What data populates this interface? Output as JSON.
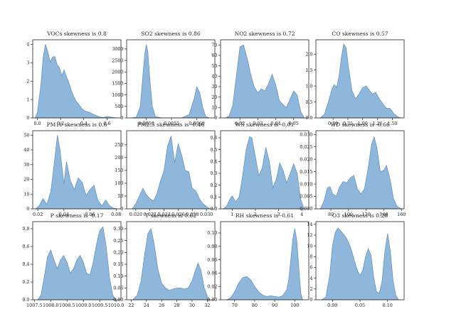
{
  "chart_data": [
    {
      "type": "area",
      "title": "VOCs  skewness is 0.8",
      "xlim": [
        -0.04,
        0.72
      ],
      "ylim": [
        0,
        4.25
      ],
      "xticks": [
        0.0,
        0.2,
        0.4,
        0.6
      ],
      "xtick_labels": [
        "0.0",
        "0.2",
        "0.4",
        "0.6"
      ],
      "yticks": [
        0,
        1,
        2,
        3,
        4
      ],
      "ytick_labels": [
        "0",
        "1",
        "2",
        "3",
        "4"
      ],
      "x": [
        -0.02,
        0.0,
        0.03,
        0.05,
        0.07,
        0.09,
        0.11,
        0.13,
        0.15,
        0.17,
        0.19,
        0.21,
        0.23,
        0.25,
        0.27,
        0.3,
        0.33,
        0.36,
        0.39,
        0.42,
        0.45,
        0.48,
        0.51,
        0.54,
        0.57,
        0.6,
        0.63,
        0.66,
        0.69
      ],
      "y": [
        0,
        0.3,
        1.8,
        3.3,
        4.0,
        3.6,
        3.05,
        3.3,
        3.35,
        2.9,
        2.75,
        2.3,
        2.6,
        2.25,
        1.95,
        1.35,
        0.95,
        0.7,
        0.45,
        0.35,
        0.3,
        0.2,
        0.12,
        0.05,
        0.03,
        0.08,
        0.05,
        0.02,
        0
      ]
    },
    {
      "type": "area",
      "title": "SO2  skewness is 0.86",
      "xlim": [
        0.00461,
        0.00636
      ],
      "ylim": [
        0,
        3400
      ],
      "xticks": [
        0.005,
        0.0055,
        0.006
      ],
      "xtick_labels": [
        "0.0050",
        "0.0055",
        "0.0060"
      ],
      "yticks": [
        0,
        500,
        1000,
        1500,
        2000,
        2500,
        3000
      ],
      "ytick_labels": [
        "0",
        "500",
        "1000",
        "1500",
        "2000",
        "2500",
        "3000"
      ],
      "x": [
        0.0047,
        0.0048,
        0.00488,
        0.00493,
        0.00497,
        0.005,
        0.00503,
        0.00507,
        0.00512,
        0.00518,
        0.0053,
        0.0055,
        0.0057,
        0.00585,
        0.00595,
        0.006,
        0.00606,
        0.00612,
        0.00618,
        0.00624
      ],
      "y": [
        0,
        30,
        500,
        1800,
        2800,
        3180,
        2900,
        1700,
        500,
        60,
        0,
        0,
        0,
        150,
        850,
        1350,
        1100,
        450,
        60,
        0
      ]
    },
    {
      "type": "area",
      "title": "NO2  skewness is 0.72",
      "xlim": [
        0.0092,
        0.0585
      ],
      "ylim": [
        0,
        75
      ],
      "xticks": [
        0.02,
        0.03,
        0.04,
        0.05
      ],
      "xtick_labels": [
        "0.02",
        "0.03",
        "0.04",
        "0.05"
      ],
      "yticks": [
        0,
        10,
        20,
        30,
        40,
        50,
        60,
        70
      ],
      "ytick_labels": [
        "0",
        "10",
        "20",
        "30",
        "40",
        "50",
        "60",
        "70"
      ],
      "x": [
        0.012,
        0.014,
        0.016,
        0.018,
        0.02,
        0.022,
        0.024,
        0.026,
        0.028,
        0.03,
        0.032,
        0.034,
        0.036,
        0.038,
        0.04,
        0.042,
        0.044,
        0.046,
        0.048,
        0.05,
        0.052,
        0.054,
        0.056
      ],
      "y": [
        0,
        2,
        12,
        40,
        68,
        70,
        58,
        42,
        30,
        24,
        28,
        26,
        33,
        42,
        32,
        17,
        13,
        10,
        18,
        26,
        22,
        6,
        0
      ]
    },
    {
      "type": "area",
      "title": "CO  skewness is 0.57",
      "xlim": [
        0.21,
        1.7
      ],
      "ylim": [
        0,
        2.45
      ],
      "xticks": [
        0.5,
        0.75,
        1.0,
        1.25,
        1.5
      ],
      "xtick_labels": [
        "0.50",
        "0.75",
        "1.00",
        "1.25",
        "1.50"
      ],
      "yticks": [
        0,
        0.5,
        1.0,
        1.5,
        2.0
      ],
      "ytick_labels": [
        "0.0",
        "0.5",
        "1.0",
        "1.5",
        "2.0"
      ],
      "x": [
        0.28,
        0.35,
        0.42,
        0.48,
        0.52,
        0.56,
        0.6,
        0.64,
        0.68,
        0.72,
        0.76,
        0.82,
        0.88,
        0.94,
        1.0,
        1.06,
        1.12,
        1.16,
        1.22,
        1.28,
        1.34,
        1.4,
        1.46,
        1.52,
        1.58,
        1.64
      ],
      "y": [
        0,
        0.1,
        0.5,
        0.9,
        1.05,
        0.95,
        1.3,
        1.9,
        2.32,
        2.2,
        1.6,
        0.85,
        0.6,
        0.75,
        0.95,
        1.0,
        0.85,
        0.75,
        0.8,
        0.6,
        0.45,
        0.3,
        0.3,
        0.15,
        0.05,
        0
      ]
    },
    {
      "type": "area",
      "title": "PM10  skewness is 0.6",
      "xlim": [
        0.0161,
        0.0837
      ],
      "ylim": [
        0,
        53
      ],
      "xticks": [
        0.02,
        0.04,
        0.06,
        0.08
      ],
      "xtick_labels": [
        "0.02",
        "0.04",
        "0.06",
        "0.08"
      ],
      "yticks": [
        0,
        10,
        20,
        30,
        40,
        50
      ],
      "ytick_labels": [
        "0",
        "10",
        "20",
        "30",
        "40",
        "50"
      ],
      "x": [
        0.018,
        0.021,
        0.024,
        0.027,
        0.03,
        0.033,
        0.035,
        0.037,
        0.04,
        0.042,
        0.045,
        0.048,
        0.051,
        0.054,
        0.057,
        0.06,
        0.063,
        0.066,
        0.069,
        0.072,
        0.075,
        0.078,
        0.081
      ],
      "y": [
        0,
        2,
        7,
        3,
        12,
        34,
        50,
        40,
        17,
        32,
        19,
        13,
        21,
        18,
        9,
        13,
        16,
        6,
        2,
        6,
        2,
        0.5,
        0
      ]
    },
    {
      "type": "area",
      "title": "PM2.5  skewness is -0.46",
      "xlim": [
        0.0187,
        0.0312
      ],
      "ylim": [
        0,
        305
      ],
      "xticks": [
        0.02,
        0.022,
        0.024,
        0.026,
        0.028,
        0.03
      ],
      "xtick_labels": [
        "0.020",
        "0.022",
        "0.024",
        "0.026",
        "0.028",
        "0.030"
      ],
      "yticks": [
        0,
        50,
        100,
        150,
        200,
        250
      ],
      "ytick_labels": [
        "0",
        "50",
        "100",
        "150",
        "200",
        "250"
      ],
      "x": [
        0.0195,
        0.02,
        0.0205,
        0.021,
        0.0215,
        0.022,
        0.0225,
        0.023,
        0.0235,
        0.024,
        0.0245,
        0.025,
        0.0255,
        0.026,
        0.0265,
        0.027,
        0.0275,
        0.028,
        0.0285,
        0.029,
        0.0295,
        0.0305
      ],
      "y": [
        0,
        20,
        50,
        80,
        55,
        40,
        30,
        60,
        110,
        150,
        245,
        285,
        180,
        255,
        210,
        150,
        145,
        80,
        70,
        40,
        20,
        0
      ]
    },
    {
      "type": "area",
      "title": "WS  skewness is -0.01",
      "xlim": [
        0.5,
        4.3
      ],
      "ylim": [
        0,
        0.66
      ],
      "xticks": [
        1,
        2,
        3,
        4
      ],
      "xtick_labels": [
        "1",
        "2",
        "3",
        "4"
      ],
      "yticks": [
        0,
        0.1,
        0.2,
        0.3,
        0.4,
        0.5,
        0.6
      ],
      "ytick_labels": [
        "0.0",
        "0.1",
        "0.2",
        "0.3",
        "0.4",
        "0.5",
        "0.6"
      ],
      "x": [
        0.6,
        0.75,
        0.9,
        1.0,
        1.15,
        1.3,
        1.45,
        1.6,
        1.75,
        1.85,
        2.0,
        2.15,
        2.3,
        2.45,
        2.6,
        2.75,
        2.9,
        3.05,
        3.2,
        3.35,
        3.5,
        3.65,
        3.8,
        3.95,
        4.1
      ],
      "y": [
        0,
        0.02,
        0.08,
        0.11,
        0.06,
        0.1,
        0.28,
        0.5,
        0.61,
        0.6,
        0.44,
        0.28,
        0.35,
        0.52,
        0.4,
        0.18,
        0.25,
        0.39,
        0.32,
        0.22,
        0.3,
        0.38,
        0.3,
        0.08,
        0
      ]
    },
    {
      "type": "area",
      "title": "WD  skewness is -0.66",
      "xlim": [
        63,
        163
      ],
      "ylim": [
        0,
        0.0315
      ],
      "xticks": [
        80,
        100,
        120,
        140,
        160
      ],
      "xtick_labels": [
        "80",
        "100",
        "120",
        "140",
        "160"
      ],
      "yticks": [
        0,
        0.005,
        0.01,
        0.015,
        0.02,
        0.025,
        0.03
      ],
      "ytick_labels": [
        "0.000",
        "0.005",
        "0.010",
        "0.015",
        "0.020",
        "0.025",
        "0.030"
      ],
      "x": [
        68,
        72,
        76,
        79,
        82,
        86,
        90,
        94,
        98,
        102,
        106,
        110,
        114,
        118,
        122,
        126,
        129,
        132,
        136,
        140,
        143,
        147,
        151,
        155,
        160
      ],
      "y": [
        0,
        0.003,
        0.0085,
        0.009,
        0.006,
        0.005,
        0.009,
        0.011,
        0.0105,
        0.0125,
        0.0135,
        0.008,
        0.006,
        0.008,
        0.016,
        0.026,
        0.029,
        0.025,
        0.015,
        0.0155,
        0.0175,
        0.012,
        0.004,
        0.001,
        0
      ]
    },
    {
      "type": "area",
      "title": "P  skewness is -0.17",
      "xlim": [
        1007.45,
        1010.15
      ],
      "ylim": [
        0,
        0.88
      ],
      "xticks": [
        1007.5,
        1008.0,
        1008.5,
        1009.0,
        1009.5,
        1010.0
      ],
      "xtick_labels": [
        "1007.5",
        "1008.0",
        "1008.5",
        "1009.0",
        "1009.5",
        "1010.0"
      ],
      "yticks": [
        0,
        0.2,
        0.4,
        0.6,
        0.8
      ],
      "ytick_labels": [
        "0.0",
        "0.2",
        "0.4",
        "0.6",
        "0.8"
      ],
      "x": [
        1007.6,
        1007.7,
        1007.8,
        1007.9,
        1008.0,
        1008.1,
        1008.2,
        1008.3,
        1008.4,
        1008.5,
        1008.6,
        1008.7,
        1008.8,
        1008.9,
        1009.0,
        1009.1,
        1009.2,
        1009.3,
        1009.4,
        1009.5,
        1009.6,
        1009.7,
        1009.8,
        1009.9,
        1010.0
      ],
      "y": [
        0,
        0.05,
        0.25,
        0.48,
        0.56,
        0.45,
        0.35,
        0.45,
        0.5,
        0.42,
        0.3,
        0.35,
        0.45,
        0.5,
        0.42,
        0.3,
        0.28,
        0.42,
        0.62,
        0.78,
        0.82,
        0.6,
        0.25,
        0.05,
        0
      ]
    },
    {
      "type": "area",
      "title": "T  skewness is 0.62",
      "xlim": [
        21.4,
        33
      ],
      "ylim": [
        0,
        0.33
      ],
      "xticks": [
        22,
        24,
        26,
        28,
        30,
        32
      ],
      "xtick_labels": [
        "22",
        "24",
        "26",
        "28",
        "30",
        "32"
      ],
      "yticks": [
        0,
        0.05,
        0.1,
        0.15,
        0.2,
        0.25,
        0.3
      ],
      "ytick_labels": [
        "0.00",
        "0.05",
        "0.10",
        "0.15",
        "0.20",
        "0.25",
        "0.30"
      ],
      "x": [
        22.2,
        22.8,
        23.3,
        23.8,
        24.2,
        24.6,
        25.0,
        25.5,
        26.0,
        26.5,
        27.0,
        27.5,
        28.0,
        28.5,
        29.0,
        29.5,
        30.0,
        30.4,
        30.8,
        31.2,
        31.6,
        32.2
      ],
      "y": [
        0,
        0.02,
        0.08,
        0.2,
        0.28,
        0.3,
        0.24,
        0.13,
        0.07,
        0.05,
        0.04,
        0.045,
        0.05,
        0.05,
        0.045,
        0.05,
        0.08,
        0.12,
        0.155,
        0.12,
        0.05,
        0
      ]
    },
    {
      "type": "area",
      "title": "RH  skewness is -0.61",
      "xlim": [
        63,
        107
      ],
      "ylim": [
        0,
        0.117
      ],
      "xticks": [
        70,
        80,
        90,
        100
      ],
      "xtick_labels": [
        "70",
        "80",
        "90",
        "100"
      ],
      "yticks": [
        0,
        0.02,
        0.04,
        0.06,
        0.08,
        0.1
      ],
      "ytick_labels": [
        "0.00",
        "0.02",
        "0.04",
        "0.06",
        "0.08",
        "0.10"
      ],
      "x": [
        66,
        68,
        70,
        72,
        74,
        76,
        78,
        80,
        82,
        84,
        86,
        88,
        90,
        92,
        94,
        96,
        97,
        98,
        99,
        100,
        101,
        102,
        103,
        104
      ],
      "y": [
        0,
        0.003,
        0.012,
        0.025,
        0.033,
        0.035,
        0.03,
        0.02,
        0.012,
        0.007,
        0.005,
        0.006,
        0.005,
        0.004,
        0.006,
        0.015,
        0.03,
        0.06,
        0.09,
        0.107,
        0.09,
        0.05,
        0.01,
        0
      ]
    },
    {
      "type": "area",
      "title": "O3  skewness is 0.28",
      "xlim": [
        -0.03,
        0.13
      ],
      "ylim": [
        0,
        14.5
      ],
      "xticks": [
        0.0,
        0.05,
        0.1
      ],
      "xtick_labels": [
        "0.00",
        "0.05",
        "0.10"
      ],
      "yticks": [
        0,
        2,
        4,
        6,
        8,
        10,
        12,
        14
      ],
      "ytick_labels": [
        "0",
        "2",
        "4",
        "6",
        "8",
        "10",
        "12",
        "14"
      ],
      "x": [
        -0.02,
        -0.012,
        -0.005,
        0.0,
        0.005,
        0.01,
        0.015,
        0.02,
        0.025,
        0.03,
        0.035,
        0.04,
        0.045,
        0.05,
        0.055,
        0.06,
        0.065,
        0.07,
        0.075,
        0.08,
        0.085,
        0.09,
        0.095,
        0.1,
        0.105,
        0.11,
        0.115,
        0.12
      ],
      "y": [
        0,
        0.5,
        4.5,
        10,
        12.5,
        13.3,
        12.8,
        12.2,
        11.5,
        10.5,
        9.0,
        7.2,
        5.5,
        4.5,
        5.5,
        8.0,
        9.5,
        8.3,
        4.0,
        1.5,
        1.2,
        3.5,
        9.0,
        12.3,
        9.0,
        3.5,
        0.8,
        0
      ]
    }
  ]
}
